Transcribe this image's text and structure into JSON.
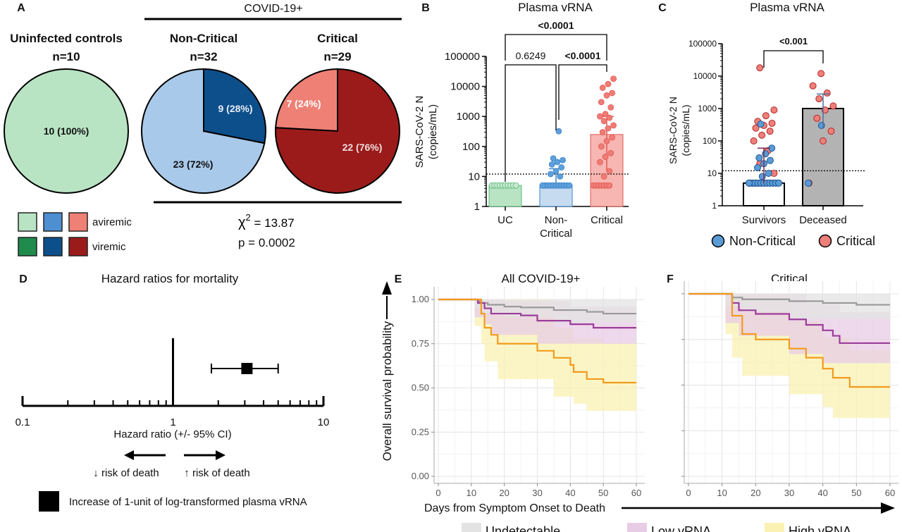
{
  "panel_labels": {
    "a": "A",
    "b": "B",
    "c": "C",
    "d": "D",
    "e": "E",
    "f": "F"
  },
  "panel_a": {
    "covid_header": "COVID-19+",
    "pies": [
      {
        "title": "Uninfected controls",
        "n": "n=10",
        "slices": [
          {
            "label": "10 (100%)",
            "value": 10,
            "status": "aviremic"
          }
        ]
      },
      {
        "title": "Non-Critical",
        "n": "n=32",
        "slices": [
          {
            "label": "23 (72%)",
            "value": 23,
            "status": "aviremic"
          },
          {
            "label": "9 (28%)",
            "value": 9,
            "status": "viremic"
          }
        ]
      },
      {
        "title": "Critical",
        "n": "n=29",
        "slices": [
          {
            "label": "7 (24%)",
            "value": 7,
            "status": "aviremic"
          },
          {
            "label": "22 (76%)",
            "value": 22,
            "status": "viremic"
          }
        ]
      }
    ],
    "legend": {
      "aviremic": "aviremic",
      "viremic": "viremic"
    },
    "stat_chi_symbol": "χ",
    "stat_chi_exp": "2",
    "stat_chi_value": "= 13.87",
    "stat_p": "p = 0.0002",
    "colors": {
      "uc_avi": "#b9e4c4",
      "uc_vir": "#1f8b4c",
      "nc_avi": "#a9c9ea",
      "nc_avi_legend": "#4e8fd2",
      "nc_vir": "#0d4f8b",
      "cr_avi": "#ef8075",
      "cr_vir": "#9b1b1b"
    }
  },
  "chart_data": [
    {
      "type": "bar",
      "title": "Plasma vRNA",
      "ylabel": "SARS-CoV-2 N",
      "ylabel2": "(copies/mL)",
      "yscale": "log",
      "ylim": [
        1,
        100000
      ],
      "yticks": [
        "1",
        "10",
        "100",
        "1000",
        "10000",
        "100000"
      ],
      "threshold": 12,
      "categories": [
        {
          "l1": "UC",
          "l2": ""
        },
        {
          "l1": "Non-",
          "l2": "Critical"
        },
        {
          "l1": "Critical",
          "l2": ""
        }
      ],
      "values": [
        5,
        5,
        250
      ],
      "error_upper": [
        5,
        18,
        1000
      ],
      "error_lower": [
        5,
        5,
        15
      ],
      "points": [
        [
          5,
          5,
          5,
          5,
          5,
          5,
          5,
          5,
          5,
          5
        ],
        [
          5,
          5,
          5,
          5,
          5,
          5,
          5,
          5,
          5,
          5,
          5,
          5,
          5,
          5,
          5,
          5,
          5,
          5,
          5,
          5,
          5,
          5,
          5,
          10,
          12,
          15,
          20,
          25,
          30,
          35,
          40,
          320
        ],
        [
          5,
          5,
          5,
          5,
          5,
          5,
          5,
          10,
          15,
          30,
          45,
          60,
          100,
          150,
          200,
          300,
          400,
          500,
          700,
          900,
          1000,
          1200,
          2000,
          3000,
          5000,
          6000,
          9000,
          12000,
          18000
        ]
      ],
      "comparisons": [
        {
          "label": "0.6249",
          "bold": false
        },
        {
          "label": "<0.0001",
          "bold": true
        },
        {
          "label": "<0.0001",
          "bold": true
        }
      ],
      "colors": {
        "uc": "#b9e4c4",
        "uc_pt": "#5cb87a",
        "nc": "#c6dbf0",
        "nc_pt": "#3f86c8",
        "cr": "#f7b6b1",
        "cr_pt": "#e05a55"
      }
    },
    {
      "type": "bar",
      "title": "Plasma vRNA",
      "ylabel": "SARS-CoV-2 N",
      "ylabel2": "(copies/mL)",
      "yscale": "log",
      "ylim": [
        1,
        100000
      ],
      "yticks": [
        "1",
        "10",
        "100",
        "1000",
        "10000",
        "100000"
      ],
      "threshold": 12,
      "categories": [
        "Survivors",
        "Deceased"
      ],
      "values": [
        5,
        1000
      ],
      "error_upper": [
        60,
        2800
      ],
      "error_lower": [
        5,
        250
      ],
      "points_noncritical": [
        [
          5,
          5,
          5,
          5,
          5,
          5,
          5,
          5,
          5,
          5,
          5,
          5,
          5,
          5,
          5,
          5,
          5,
          5,
          5,
          5,
          5,
          5,
          5,
          8,
          10,
          15,
          20,
          25,
          30,
          40,
          60,
          330
        ],
        [
          5,
          300
        ]
      ],
      "points_critical": [
        [
          5,
          5,
          5,
          5,
          5,
          10,
          20,
          50,
          100,
          150,
          200,
          250,
          300,
          350,
          400,
          600,
          900,
          18000
        ],
        [
          5,
          100,
          200,
          500,
          900,
          1200,
          2000,
          3000,
          5000,
          12000
        ]
      ],
      "comparison": "<0.001",
      "legend": [
        "Non-Critical",
        "Critical"
      ],
      "colors": {
        "nc": "#5b9bd5",
        "cr": "#ef7f7a",
        "surv_bar": "#ffffff",
        "dec_bar": "#b3b3b3"
      }
    },
    {
      "type": "forest",
      "title": "Hazard ratios for mortality",
      "xlabel": "Hazard ratio (+/- 95% CI)",
      "xscale": "log",
      "xlim": [
        0.1,
        10
      ],
      "xticks": [
        "0.1",
        "1",
        "10"
      ],
      "estimate": 3.1,
      "ci": [
        1.8,
        5.0
      ],
      "label_left": "↓ risk of death",
      "label_right": "↑ risk of death",
      "legend": "Increase of 1-unit of log-transformed plasma vRNA"
    },
    {
      "type": "line",
      "title": "All COVID-19+",
      "xlabel": "Days from Symptom Onset to Death",
      "ylabel": "Overall survival probability",
      "xlim": [
        0,
        60
      ],
      "ylim": [
        0,
        1
      ],
      "xticks": [
        "0",
        "10",
        "20",
        "30",
        "40",
        "50",
        "60"
      ],
      "yticks": [
        "0.00",
        "0.25",
        "0.50",
        "0.75",
        "1.00"
      ],
      "series": [
        {
          "name": "Undetectable",
          "color": "#999999",
          "band": "#e3e3e3",
          "points": [
            [
              0,
              1
            ],
            [
              11,
              1
            ],
            [
              12,
              0.99
            ],
            [
              13,
              0.98
            ],
            [
              15,
              0.97
            ],
            [
              20,
              0.96
            ],
            [
              25,
              0.955
            ],
            [
              35,
              0.94
            ],
            [
              45,
              0.93
            ],
            [
              50,
              0.92
            ],
            [
              60,
              0.92
            ]
          ],
          "lower": [
            [
              0,
              1
            ],
            [
              11,
              1
            ],
            [
              13,
              0.95
            ],
            [
              20,
              0.92
            ],
            [
              35,
              0.9
            ],
            [
              50,
              0.87
            ],
            [
              60,
              0.87
            ]
          ],
          "upper": [
            [
              0,
              1
            ],
            [
              60,
              1
            ]
          ]
        },
        {
          "name": "Low vRNA",
          "color": "#9b3d9b",
          "band": "#e8cce6",
          "points": [
            [
              0,
              1
            ],
            [
              11,
              1
            ],
            [
              12,
              0.98
            ],
            [
              14,
              0.95
            ],
            [
              16,
              0.92
            ],
            [
              25,
              0.91
            ],
            [
              30,
              0.88
            ],
            [
              40,
              0.86
            ],
            [
              47,
              0.84
            ],
            [
              60,
              0.84
            ]
          ],
          "lower": [
            [
              0,
              1
            ],
            [
              11,
              1
            ],
            [
              14,
              0.9
            ],
            [
              16,
              0.86
            ],
            [
              30,
              0.8
            ],
            [
              47,
              0.75
            ],
            [
              60,
              0.75
            ]
          ],
          "upper": [
            [
              0,
              1
            ],
            [
              11,
              1
            ],
            [
              20,
              0.99
            ],
            [
              40,
              0.96
            ],
            [
              60,
              0.94
            ]
          ]
        },
        {
          "name": "High vRNA",
          "color": "#f29b1d",
          "band": "#faf1b3",
          "points": [
            [
              0,
              1
            ],
            [
              11,
              1
            ],
            [
              13,
              0.92
            ],
            [
              14,
              0.84
            ],
            [
              16,
              0.8
            ],
            [
              18,
              0.75
            ],
            [
              30,
              0.71
            ],
            [
              35,
              0.67
            ],
            [
              40,
              0.63
            ],
            [
              41,
              0.59
            ],
            [
              45,
              0.55
            ],
            [
              50,
              0.53
            ],
            [
              60,
              0.53
            ]
          ],
          "lower": [
            [
              0,
              1
            ],
            [
              11,
              1
            ],
            [
              13,
              0.85
            ],
            [
              14,
              0.75
            ],
            [
              18,
              0.65
            ],
            [
              35,
              0.55
            ],
            [
              41,
              0.45
            ],
            [
              45,
              0.41
            ],
            [
              50,
              0.37
            ],
            [
              60,
              0.37
            ]
          ],
          "upper": [
            [
              0,
              1
            ],
            [
              18,
              1
            ],
            [
              35,
              0.84
            ],
            [
              41,
              0.78
            ],
            [
              50,
              0.75
            ],
            [
              60,
              0.75
            ]
          ]
        }
      ]
    },
    {
      "type": "line",
      "title": "Critical",
      "xlabel": "Days from Symptom Onset to Death",
      "xlim": [
        0,
        60
      ],
      "ylim": [
        0,
        1
      ],
      "xticks": [
        "0",
        "10",
        "20",
        "30",
        "40",
        "50",
        "60"
      ],
      "series": [
        {
          "name": "Undetectable",
          "color": "#999999",
          "band": "#e3e3e3",
          "points": [
            [
              0,
              1
            ],
            [
              11,
              1
            ],
            [
              13,
              0.98
            ],
            [
              16,
              0.97
            ],
            [
              25,
              0.97
            ],
            [
              30,
              0.96
            ],
            [
              40,
              0.95
            ],
            [
              50,
              0.94
            ],
            [
              60,
              0.94
            ]
          ],
          "lower": [
            [
              0,
              1
            ],
            [
              11,
              1
            ],
            [
              16,
              0.93
            ],
            [
              30,
              0.9
            ],
            [
              50,
              0.86
            ],
            [
              60,
              0.86
            ]
          ],
          "upper": [
            [
              0,
              1
            ],
            [
              60,
              1
            ]
          ]
        },
        {
          "name": "Low vRNA",
          "color": "#9b3d9b",
          "band": "#e8cce6",
          "points": [
            [
              0,
              1
            ],
            [
              11,
              1
            ],
            [
              13,
              0.95
            ],
            [
              15,
              0.91
            ],
            [
              20,
              0.89
            ],
            [
              30,
              0.86
            ],
            [
              35,
              0.83
            ],
            [
              40,
              0.8
            ],
            [
              43,
              0.77
            ],
            [
              45,
              0.73
            ],
            [
              60,
              0.73
            ]
          ],
          "lower": [
            [
              0,
              1
            ],
            [
              11,
              1
            ],
            [
              15,
              0.84
            ],
            [
              30,
              0.77
            ],
            [
              40,
              0.67
            ],
            [
              45,
              0.62
            ],
            [
              60,
              0.62
            ]
          ],
          "upper": [
            [
              0,
              1
            ],
            [
              20,
              1
            ],
            [
              35,
              0.95
            ],
            [
              45,
              0.9
            ],
            [
              60,
              0.89
            ]
          ]
        },
        {
          "name": "High vRNA",
          "color": "#f29b1d",
          "band": "#faf1b3",
          "points": [
            [
              0,
              1
            ],
            [
              11,
              1
            ],
            [
              13,
              0.88
            ],
            [
              16,
              0.78
            ],
            [
              20,
              0.75
            ],
            [
              30,
              0.7
            ],
            [
              35,
              0.65
            ],
            [
              40,
              0.59
            ],
            [
              43,
              0.54
            ],
            [
              48,
              0.49
            ],
            [
              60,
              0.49
            ]
          ],
          "lower": [
            [
              0,
              1
            ],
            [
              11,
              1
            ],
            [
              13,
              0.78
            ],
            [
              16,
              0.65
            ],
            [
              30,
              0.55
            ],
            [
              40,
              0.45
            ],
            [
              43,
              0.38
            ],
            [
              48,
              0.32
            ],
            [
              60,
              0.32
            ]
          ],
          "upper": [
            [
              0,
              1
            ],
            [
              16,
              1
            ],
            [
              30,
              0.85
            ],
            [
              40,
              0.76
            ],
            [
              48,
              0.69
            ],
            [
              60,
              0.69
            ]
          ]
        }
      ]
    }
  ]
}
